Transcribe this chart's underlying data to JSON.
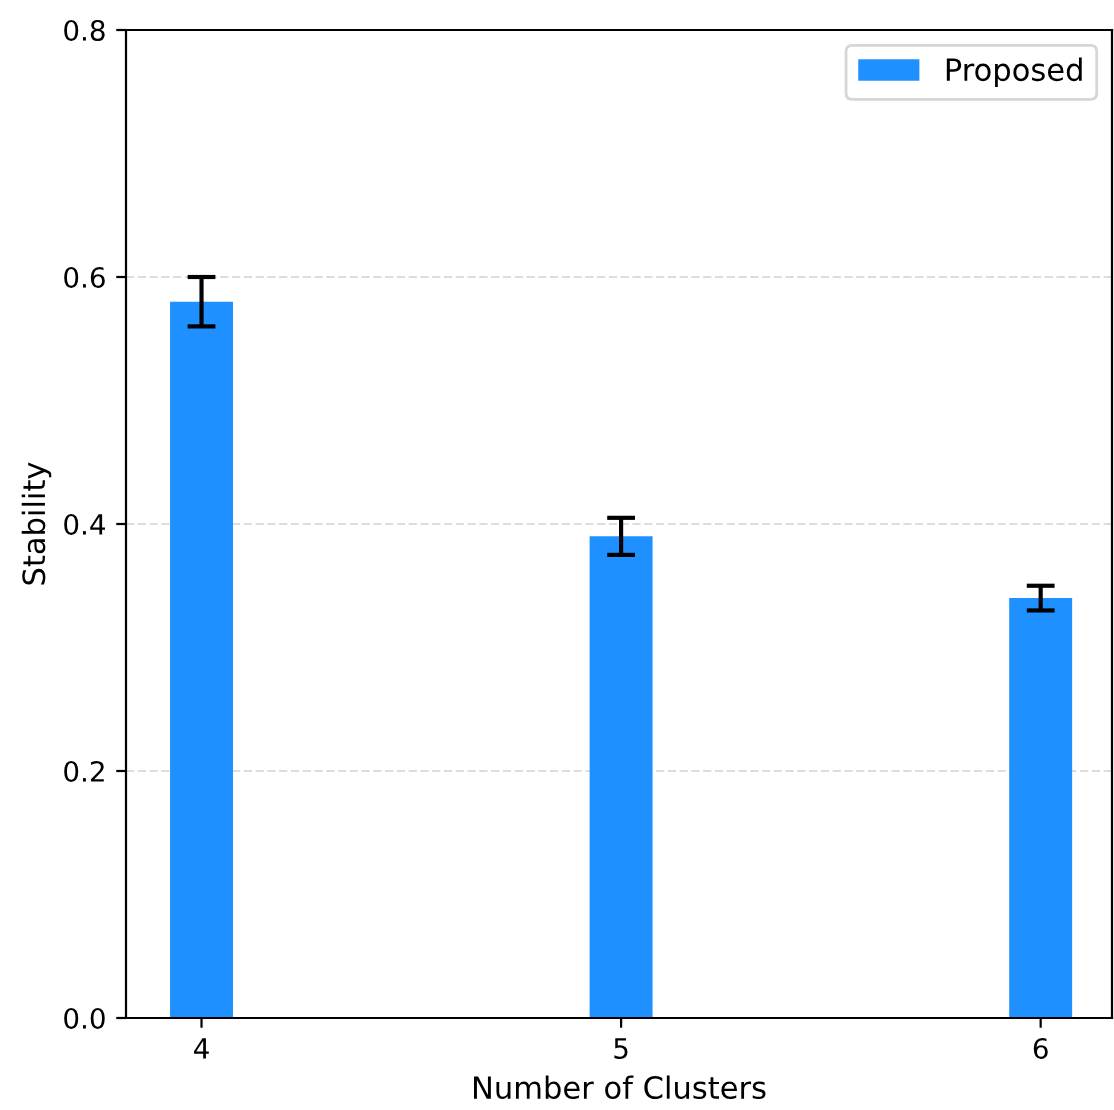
{
  "chart_data": {
    "type": "bar",
    "xlabel": "Number of Clusters",
    "ylabel": "Stability",
    "x": [
      4,
      5,
      6
    ],
    "series": [
      {
        "name": "Proposed",
        "color": "#1e90ff",
        "values": [
          0.58,
          0.39,
          0.34
        ],
        "errors": [
          0.02,
          0.015,
          0.01
        ]
      }
    ],
    "xlim": [
      3.82,
      6.17
    ],
    "xticks": [
      4,
      5,
      6
    ],
    "ylim": [
      0,
      0.8
    ],
    "yticks": [
      {
        "value": 0,
        "label": "0.0"
      },
      0.2,
      0.4,
      0.6,
      0.8
    ],
    "grid": "y",
    "legend": "top right"
  }
}
